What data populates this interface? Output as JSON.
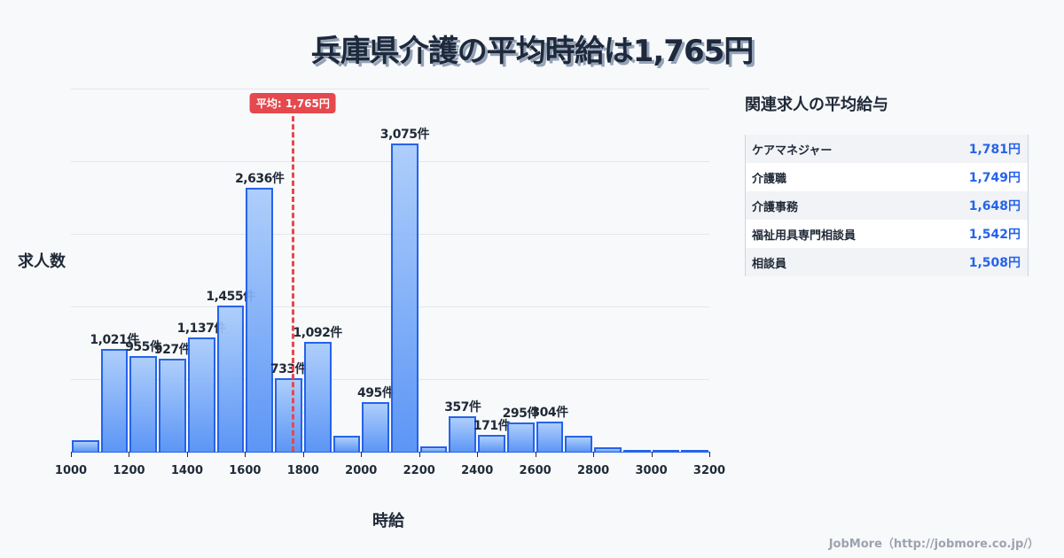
{
  "title": "兵庫県介護の平均時給は1,765円",
  "chart_data": {
    "type": "bar",
    "title": "兵庫県介護の平均時給は1,765円",
    "xlabel": "時給",
    "ylabel": "求人数",
    "bin_width": 100,
    "x_range": [
      1000,
      3200
    ],
    "ylim": [
      0,
      3623
    ],
    "grid": true,
    "x_ticks": [
      1000,
      1200,
      1400,
      1600,
      1800,
      2000,
      2200,
      2400,
      2600,
      2800,
      3000,
      3200
    ],
    "bins": [
      {
        "start": 1000,
        "value": 115,
        "label": ""
      },
      {
        "start": 1100,
        "value": 1021,
        "label": "1,021件"
      },
      {
        "start": 1200,
        "value": 955,
        "label": "955件"
      },
      {
        "start": 1300,
        "value": 927,
        "label": "927件"
      },
      {
        "start": 1400,
        "value": 1137,
        "label": "1,137件"
      },
      {
        "start": 1500,
        "value": 1455,
        "label": "1,455件"
      },
      {
        "start": 1600,
        "value": 2636,
        "label": "2,636件"
      },
      {
        "start": 1700,
        "value": 733,
        "label": "733件"
      },
      {
        "start": 1800,
        "value": 1092,
        "label": "1,092件"
      },
      {
        "start": 1900,
        "value": 160,
        "label": ""
      },
      {
        "start": 2000,
        "value": 495,
        "label": "495件"
      },
      {
        "start": 2100,
        "value": 3075,
        "label": "3,075件"
      },
      {
        "start": 2200,
        "value": 55,
        "label": ""
      },
      {
        "start": 2300,
        "value": 357,
        "label": "357件"
      },
      {
        "start": 2400,
        "value": 171,
        "label": "171件"
      },
      {
        "start": 2500,
        "value": 295,
        "label": "295件"
      },
      {
        "start": 2600,
        "value": 304,
        "label": "304件"
      },
      {
        "start": 2700,
        "value": 160,
        "label": ""
      },
      {
        "start": 2800,
        "value": 45,
        "label": ""
      },
      {
        "start": 2900,
        "value": 15,
        "label": ""
      },
      {
        "start": 3000,
        "value": 8,
        "label": ""
      },
      {
        "start": 3100,
        "value": 8,
        "label": ""
      }
    ],
    "average": {
      "value": 1765,
      "label": "平均: 1,765円"
    },
    "colors": {
      "bar_fill_top": "#a8cbfb",
      "bar_fill_bottom": "#4f8df5",
      "bar_stroke": "#2563eb",
      "average_line": "#e5484d"
    }
  },
  "side_panel": {
    "title": "関連求人の平均給与",
    "rows": [
      {
        "name": "ケアマネジャー",
        "value": "1,781円"
      },
      {
        "name": "介護職",
        "value": "1,749円"
      },
      {
        "name": "介護事務",
        "value": "1,648円"
      },
      {
        "name": "福祉用具専門相談員",
        "value": "1,542円"
      },
      {
        "name": "相談員",
        "value": "1,508円"
      }
    ]
  },
  "credit": "JobMore（http://jobmore.co.jp/）"
}
